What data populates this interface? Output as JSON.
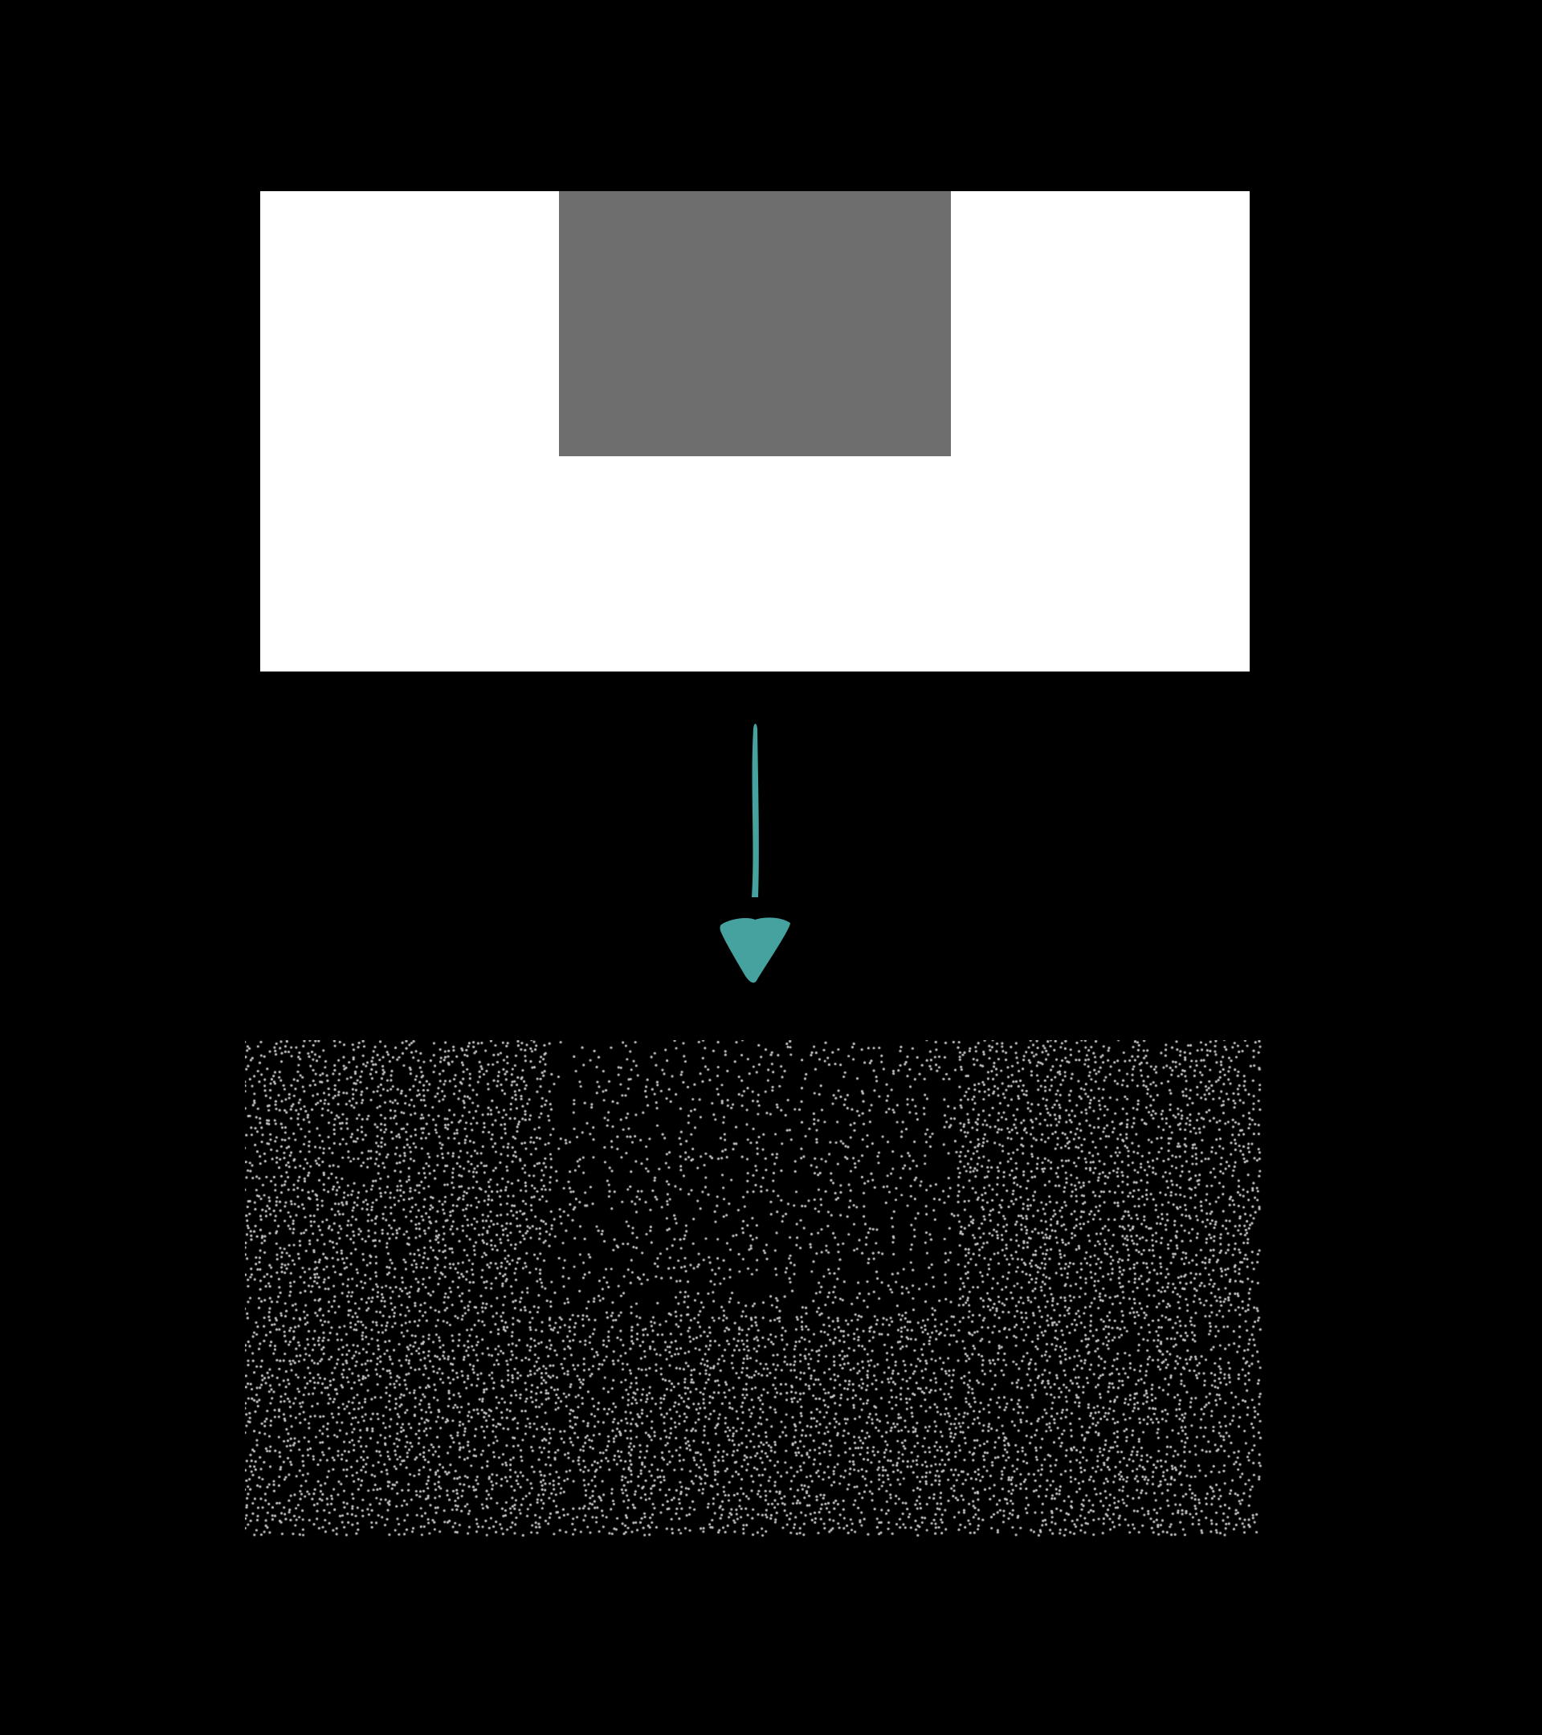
{
  "diagram": {
    "source": {
      "background_color": "#ffffff",
      "inner_rect_color": "#6e6e6e"
    },
    "arrow": {
      "icon": "down-arrow-icon",
      "color": "#45a29e"
    },
    "output": {
      "background_color": "#000000",
      "dot_color": "#c8c8c8",
      "outer_density": 0.5,
      "inner_density": 0.22
    }
  }
}
